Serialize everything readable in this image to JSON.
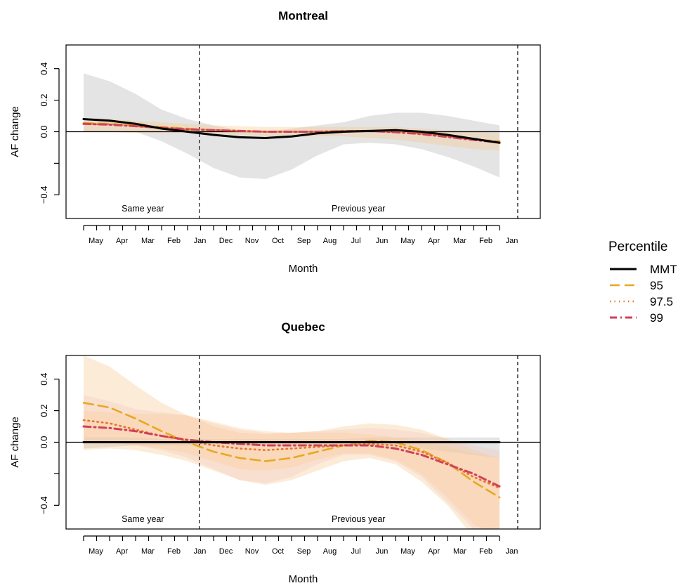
{
  "chart_data": [
    {
      "type": "line",
      "title": "Montreal",
      "xlabel": "Month",
      "ylabel": "AF change",
      "ylim": [
        -0.55,
        0.55
      ],
      "yticks": [
        -0.4,
        -0.2,
        0.0,
        0.2,
        0.4
      ],
      "ytick_labels": [
        "−0.4",
        "",
        "0.0",
        "0.2",
        "0.4"
      ],
      "categories": [
        "May",
        "Apr",
        "Mar",
        "Feb",
        "Jan",
        "Dec",
        "Nov",
        "Oct",
        "Sep",
        "Aug",
        "Jul",
        "Jun",
        "May",
        "Apr",
        "Mar",
        "Feb",
        "Jan"
      ],
      "x": [
        0,
        1,
        2,
        3,
        4,
        5,
        6,
        7,
        8,
        9,
        10,
        11,
        12,
        13,
        14,
        15,
        16
      ],
      "reference_line_y": 0,
      "vlines_x": [
        4.45,
        16.7
      ],
      "annotations": [
        "Same year",
        "Previous year"
      ],
      "series": [
        {
          "name": "MMT",
          "values": [
            0.08,
            0.07,
            0.05,
            0.02,
            0.0,
            -0.02,
            -0.035,
            -0.04,
            -0.03,
            -0.01,
            0.0,
            0.005,
            0.01,
            0.0,
            -0.02,
            -0.045,
            -0.07
          ],
          "lower": [
            0.0,
            0.0,
            0.0,
            -0.06,
            -0.14,
            -0.23,
            -0.29,
            -0.3,
            -0.24,
            -0.15,
            -0.08,
            -0.07,
            -0.08,
            -0.11,
            -0.16,
            -0.22,
            -0.29
          ],
          "upper": [
            0.37,
            0.32,
            0.24,
            0.14,
            0.08,
            0.04,
            0.01,
            0.0,
            0.02,
            0.04,
            0.06,
            0.1,
            0.12,
            0.12,
            0.1,
            0.07,
            0.04
          ]
        },
        {
          "name": "95",
          "values": [
            0.055,
            0.05,
            0.04,
            0.03,
            0.02,
            0.01,
            0.005,
            0.0,
            0.0,
            0.0,
            0.005,
            0.005,
            0.0,
            -0.01,
            -0.03,
            -0.05,
            -0.06
          ],
          "lower": [
            0.0,
            0.0,
            -0.01,
            -0.01,
            -0.01,
            -0.015,
            -0.02,
            -0.03,
            -0.03,
            -0.03,
            -0.03,
            -0.04,
            -0.05,
            -0.07,
            -0.09,
            -0.11,
            -0.12
          ],
          "upper": [
            0.08,
            0.08,
            0.07,
            0.06,
            0.05,
            0.04,
            0.035,
            0.03,
            0.03,
            0.03,
            0.03,
            0.03,
            0.03,
            0.02,
            0.01,
            0.0,
            -0.01
          ]
        },
        {
          "name": "97.5",
          "values": [
            0.05,
            0.045,
            0.035,
            0.025,
            0.015,
            0.01,
            0.005,
            0.0,
            0.0,
            0.0,
            0.003,
            0.005,
            -0.002,
            -0.012,
            -0.03,
            -0.05,
            -0.065
          ]
        },
        {
          "name": "99",
          "values": [
            0.05,
            0.045,
            0.035,
            0.025,
            0.015,
            0.01,
            0.005,
            0.0,
            0.0,
            0.0,
            0.003,
            0.005,
            -0.003,
            -0.015,
            -0.033,
            -0.052,
            -0.068
          ]
        }
      ]
    },
    {
      "type": "line",
      "title": "Quebec",
      "xlabel": "Month",
      "ylabel": "AF change",
      "ylim": [
        -0.55,
        0.55
      ],
      "yticks": [
        -0.4,
        -0.2,
        0.0,
        0.2,
        0.4
      ],
      "ytick_labels": [
        "−0.4",
        "",
        "0.0",
        "0.2",
        "0.4"
      ],
      "categories": [
        "May",
        "Apr",
        "Mar",
        "Feb",
        "Jan",
        "Dec",
        "Nov",
        "Oct",
        "Sep",
        "Aug",
        "Jul",
        "Jun",
        "May",
        "Apr",
        "Mar",
        "Feb",
        "Jan"
      ],
      "x": [
        0,
        1,
        2,
        3,
        4,
        5,
        6,
        7,
        8,
        9,
        10,
        11,
        12,
        13,
        14,
        15,
        16
      ],
      "reference_line_y": 0,
      "vlines_x": [
        4.45,
        16.7
      ],
      "annotations": [
        "Same year",
        "Previous year"
      ],
      "series": [
        {
          "name": "MMT",
          "values": [
            0.0,
            0.0,
            0.0,
            0.0,
            0.0,
            0.0,
            0.0,
            0.0,
            0.0,
            0.0,
            0.0,
            0.0,
            0.0,
            0.0,
            0.0,
            0.0,
            0.0
          ],
          "lower": [
            -0.04,
            -0.03,
            -0.02,
            -0.02,
            -0.02,
            -0.02,
            -0.02,
            -0.02,
            -0.02,
            -0.02,
            -0.02,
            -0.03,
            -0.03,
            -0.04,
            -0.06,
            -0.08,
            -0.1
          ],
          "upper": [
            0.03,
            0.03,
            0.03,
            0.02,
            0.02,
            0.02,
            0.02,
            0.02,
            0.02,
            0.02,
            0.02,
            0.03,
            0.03,
            0.03,
            0.03,
            0.03,
            0.03
          ]
        },
        {
          "name": "95",
          "values": [
            0.25,
            0.22,
            0.15,
            0.07,
            0.0,
            -0.06,
            -0.1,
            -0.12,
            -0.1,
            -0.06,
            -0.02,
            0.01,
            0.0,
            -0.05,
            -0.13,
            -0.25,
            -0.35
          ],
          "lower": [
            -0.05,
            -0.04,
            -0.05,
            -0.08,
            -0.12,
            -0.18,
            -0.24,
            -0.27,
            -0.24,
            -0.18,
            -0.12,
            -0.1,
            -0.14,
            -0.25,
            -0.4,
            -0.6,
            -0.6
          ],
          "upper": [
            0.55,
            0.48,
            0.36,
            0.25,
            0.17,
            0.1,
            0.06,
            0.05,
            0.06,
            0.07,
            0.1,
            0.12,
            0.11,
            0.08,
            0.02,
            -0.05,
            -0.1
          ]
        },
        {
          "name": "97.5",
          "values": [
            0.14,
            0.12,
            0.08,
            0.04,
            0.01,
            -0.02,
            -0.04,
            -0.05,
            -0.04,
            -0.03,
            -0.02,
            -0.01,
            -0.02,
            -0.06,
            -0.13,
            -0.22,
            -0.29
          ],
          "lower": [
            0.0,
            0.0,
            -0.02,
            -0.05,
            -0.1,
            -0.17,
            -0.24,
            -0.26,
            -0.22,
            -0.14,
            -0.08,
            -0.08,
            -0.12,
            -0.22,
            -0.38,
            -0.55,
            -0.6
          ],
          "upper": [
            0.3,
            0.26,
            0.21,
            0.19,
            0.17,
            0.12,
            0.08,
            0.06,
            0.06,
            0.07,
            0.08,
            0.09,
            0.08,
            0.06,
            0.02,
            -0.02,
            -0.05
          ]
        },
        {
          "name": "99",
          "values": [
            0.1,
            0.09,
            0.07,
            0.04,
            0.015,
            0.0,
            -0.01,
            -0.02,
            -0.02,
            -0.02,
            -0.02,
            -0.02,
            -0.04,
            -0.08,
            -0.14,
            -0.2,
            -0.28
          ],
          "lower": [
            0.0,
            0.0,
            -0.02,
            -0.04,
            -0.07,
            -0.12,
            -0.17,
            -0.18,
            -0.16,
            -0.11,
            -0.07,
            -0.07,
            -0.11,
            -0.2,
            -0.35,
            -0.52,
            -0.6
          ],
          "upper": [
            0.2,
            0.19,
            0.18,
            0.18,
            0.17,
            0.13,
            0.09,
            0.07,
            0.06,
            0.06,
            0.06,
            0.05,
            0.03,
            0.01,
            -0.03,
            -0.07,
            -0.1
          ]
        }
      ]
    }
  ],
  "legend": {
    "title": "Percentile",
    "placement": "right",
    "items": [
      {
        "label": "MMT",
        "color": "#000000",
        "dash": "solid"
      },
      {
        "label": "95",
        "color": "#E8A820",
        "dash": "dashed"
      },
      {
        "label": "97.5",
        "color": "#E8742A",
        "dash": "dotted"
      },
      {
        "label": "99",
        "color": "#D1405A",
        "dash": "dotdash"
      }
    ]
  },
  "colors": {
    "MMT": "#000000",
    "95": "#E8A820",
    "97.5": "#E8742A",
    "99": "#D1405A",
    "band_gray": "#D9D9D9",
    "band_orange": "#F7C98D",
    "band_pink": "#F4C8C0"
  }
}
